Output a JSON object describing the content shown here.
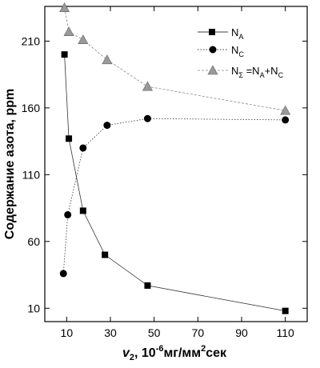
{
  "chart_data": {
    "type": "line",
    "xlabel": {
      "var": "v",
      "var_sub": "2",
      "rest": ", 10",
      "exp": "-6",
      "unit1": "мг/мм",
      "unit_exp": "2",
      "unit2": "сек"
    },
    "ylabel": "Содержание азота, ppm",
    "xlim": [
      0,
      120
    ],
    "ylim": [
      0,
      236
    ],
    "xticks": [
      10,
      30,
      50,
      70,
      90,
      110
    ],
    "yticks": [
      10,
      60,
      110,
      160,
      210
    ],
    "grid": false,
    "legend_position": "top-right",
    "series": [
      {
        "id": "NA",
        "legend": {
          "base": "N",
          "sub": "A",
          "tail": ""
        },
        "marker": "square",
        "color": "#000000",
        "x": [
          9,
          11,
          17.5,
          27.5,
          47,
          110
        ],
        "y": [
          200,
          137,
          83,
          50,
          27,
          8
        ]
      },
      {
        "id": "NC",
        "legend": {
          "base": "N",
          "sub": "C",
          "tail": ""
        },
        "marker": "circle",
        "color": "#000000",
        "x": [
          8.5,
          10.5,
          17.5,
          28.5,
          47,
          110
        ],
        "y": [
          36,
          80,
          130,
          147,
          152,
          151
        ]
      },
      {
        "id": "Nsum",
        "legend": {
          "base": "N",
          "sub": "Σ",
          "tail": " =N",
          "sub2": "A",
          "tail2": "+N",
          "sub3": "C"
        },
        "marker": "triangle",
        "color": "#888888",
        "x": [
          9,
          11,
          17.5,
          28.5,
          47,
          110
        ],
        "y": [
          235,
          217,
          211,
          196,
          176,
          158
        ]
      }
    ]
  }
}
